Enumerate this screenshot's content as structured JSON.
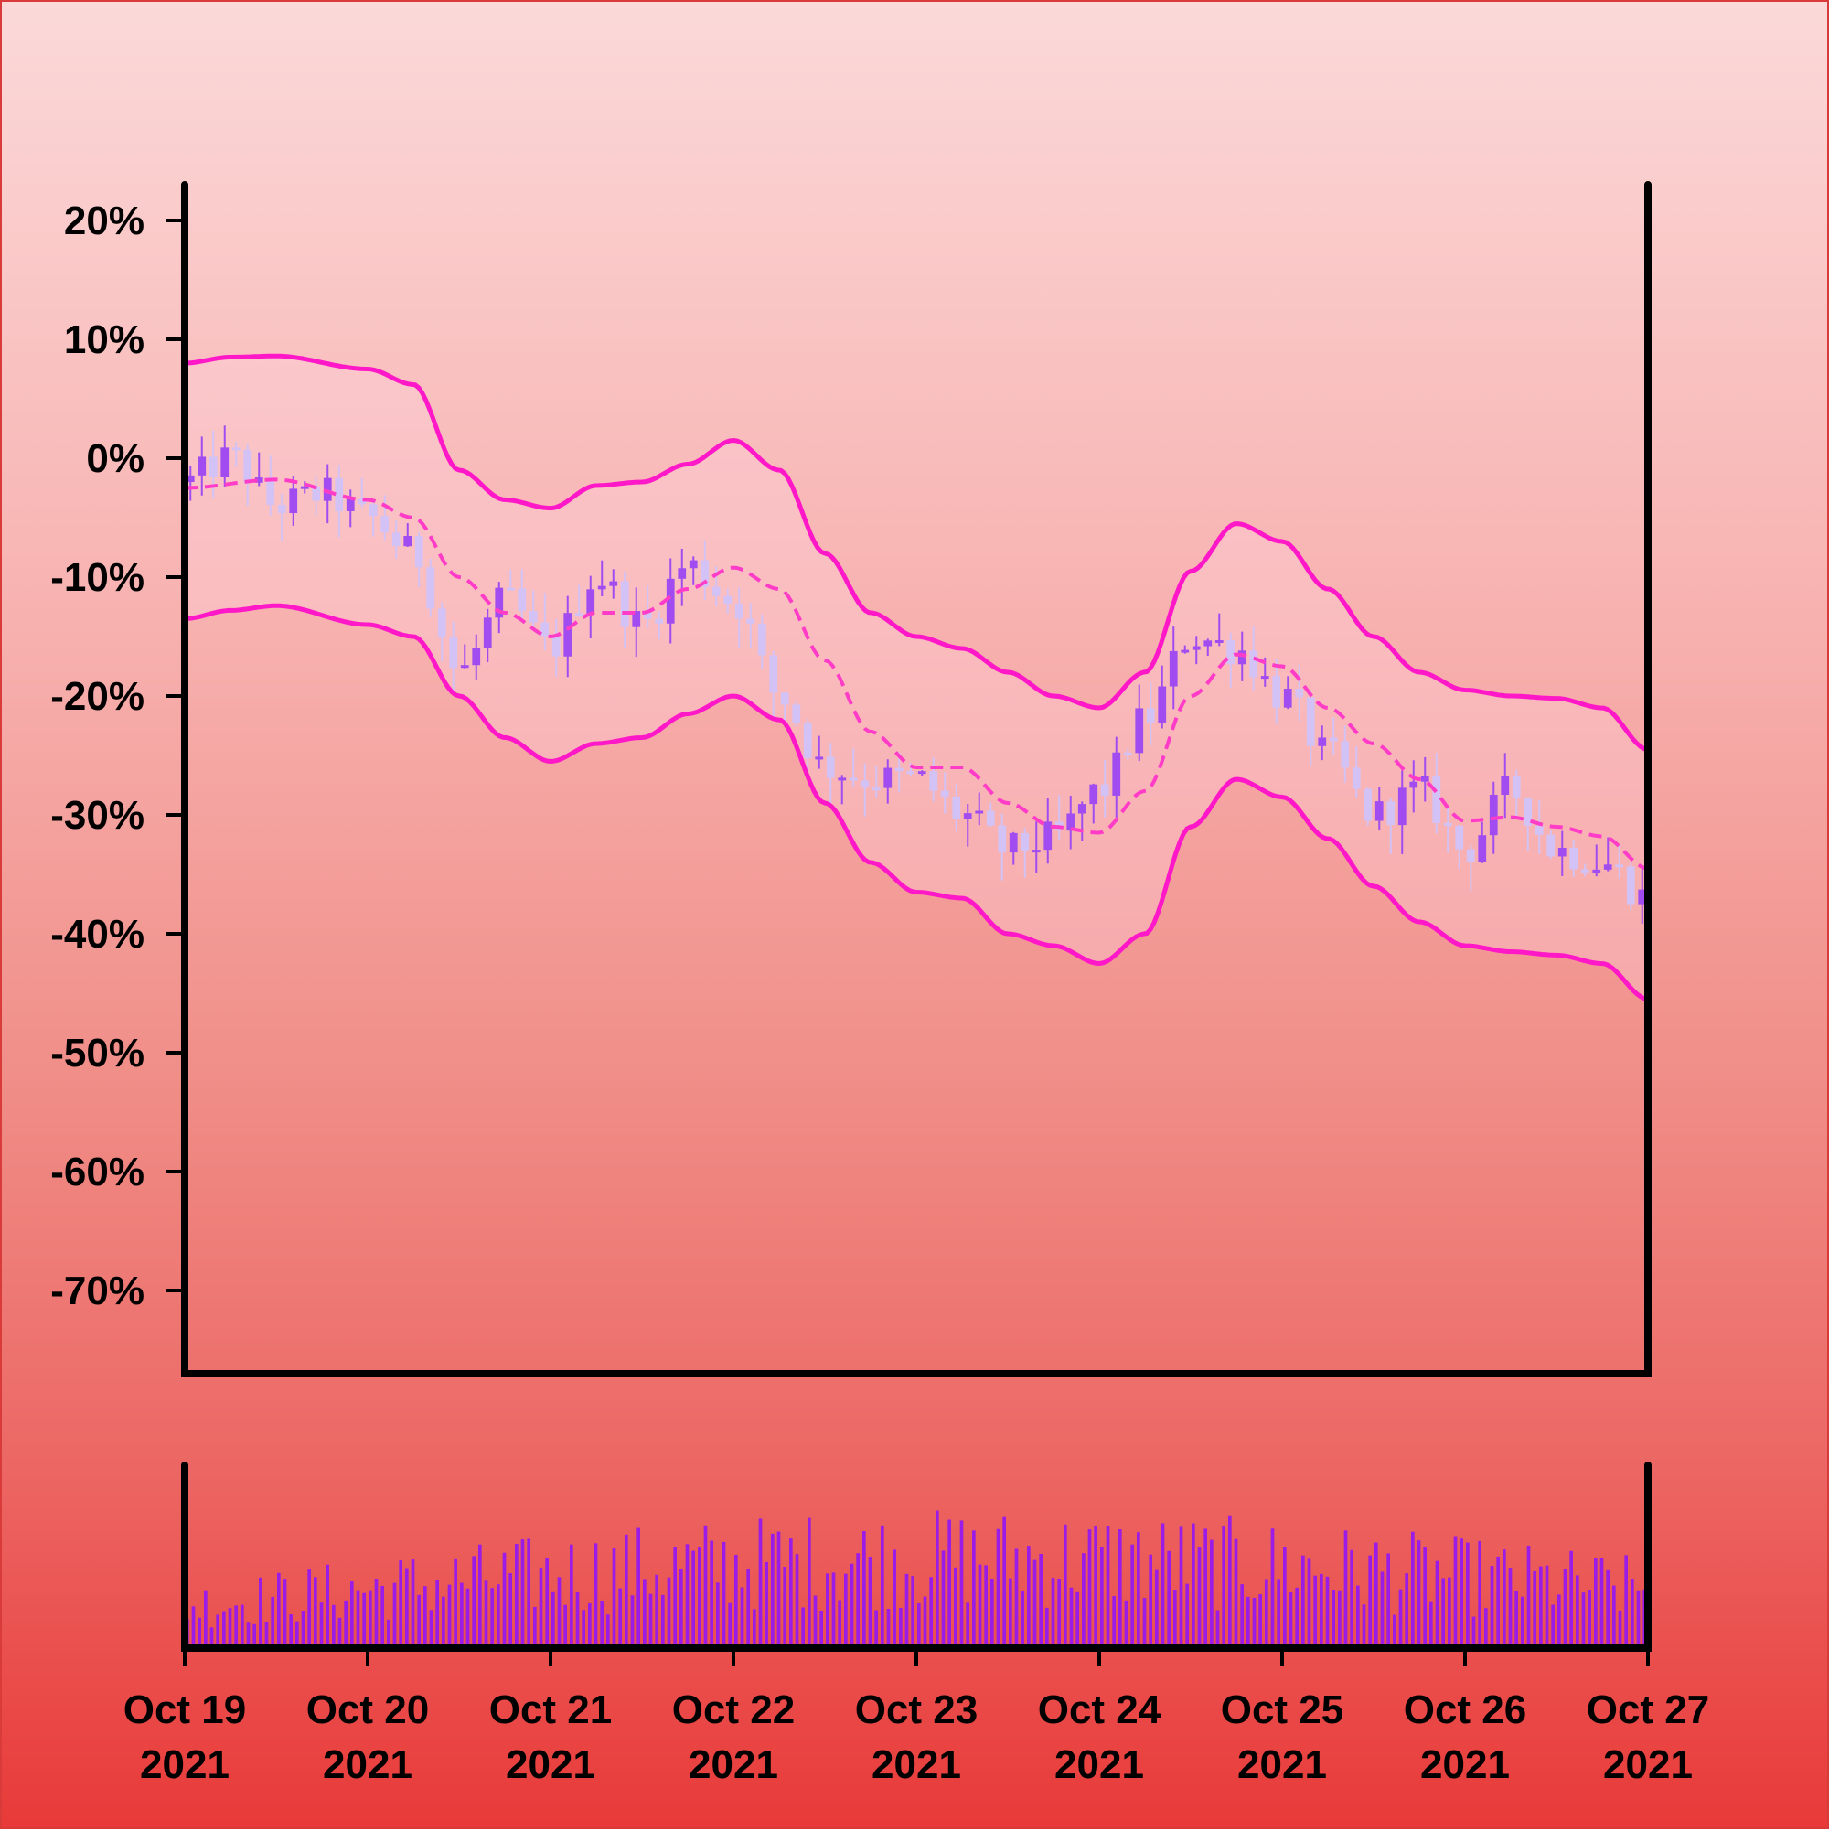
{
  "chart_data": {
    "type": "candlestick",
    "title": "",
    "xlabel": "",
    "ylabel": "",
    "y_unit": "%",
    "ylim": [
      -77,
      23
    ],
    "y_ticks": [
      "20%",
      "10%",
      "0%",
      "-10%",
      "-20%",
      "-30%",
      "-40%",
      "-50%",
      "-60%",
      "-70%"
    ],
    "y_tick_values": [
      20,
      10,
      0,
      -10,
      -20,
      -30,
      -40,
      -50,
      -60,
      -70
    ],
    "x_range": [
      "2021-10-19",
      "2021-10-27"
    ],
    "x_ticks": [
      {
        "date": "2021-10-19",
        "line1": "Oct 19",
        "line2": "2021"
      },
      {
        "date": "2021-10-20",
        "line1": "Oct 20",
        "line2": "2021"
      },
      {
        "date": "2021-10-21",
        "line1": "Oct 21",
        "line2": "2021"
      },
      {
        "date": "2021-10-22",
        "line1": "Oct 22",
        "line2": "2021"
      },
      {
        "date": "2021-10-23",
        "line1": "Oct 23",
        "line2": "2021"
      },
      {
        "date": "2021-10-24",
        "line1": "Oct 24",
        "line2": "2021"
      },
      {
        "date": "2021-10-25",
        "line1": "Oct 25",
        "line2": "2021"
      },
      {
        "date": "2021-10-26",
        "line1": "Oct 26",
        "line2": "2021"
      },
      {
        "date": "2021-10-27",
        "line1": "Oct 27",
        "line2": "2021"
      }
    ],
    "price_path": [
      {
        "t": "2021-10-19 00:00",
        "v": -2
      },
      {
        "t": "2021-10-19 06:00",
        "v": 0
      },
      {
        "t": "2021-10-19 12:00",
        "v": -4
      },
      {
        "t": "2021-10-19 18:00",
        "v": -3
      },
      {
        "t": "2021-10-20 00:00",
        "v": -5
      },
      {
        "t": "2021-10-20 06:00",
        "v": -8
      },
      {
        "t": "2021-10-20 12:00",
        "v": -18
      },
      {
        "t": "2021-10-20 18:00",
        "v": -12
      },
      {
        "t": "2021-10-21 00:00",
        "v": -16
      },
      {
        "t": "2021-10-21 06:00",
        "v": -10
      },
      {
        "t": "2021-10-21 12:00",
        "v": -14
      },
      {
        "t": "2021-10-21 18:00",
        "v": -9
      },
      {
        "t": "2021-10-22 00:00",
        "v": -12
      },
      {
        "t": "2021-10-22 06:00",
        "v": -20
      },
      {
        "t": "2021-10-22 12:00",
        "v": -26
      },
      {
        "t": "2021-10-22 18:00",
        "v": -27
      },
      {
        "t": "2021-10-23 00:00",
        "v": -27
      },
      {
        "t": "2021-10-23 06:00",
        "v": -30
      },
      {
        "t": "2021-10-23 12:00",
        "v": -33
      },
      {
        "t": "2021-10-23 18:00",
        "v": -32
      },
      {
        "t": "2021-10-24 00:00",
        "v": -28
      },
      {
        "t": "2021-10-24 06:00",
        "v": -22
      },
      {
        "t": "2021-10-24 12:00",
        "v": -15
      },
      {
        "t": "2021-10-24 18:00",
        "v": -16
      },
      {
        "t": "2021-10-25 00:00",
        "v": -20
      },
      {
        "t": "2021-10-25 06:00",
        "v": -25
      },
      {
        "t": "2021-10-25 12:00",
        "v": -30
      },
      {
        "t": "2021-10-25 18:00",
        "v": -28
      },
      {
        "t": "2021-10-26 00:00",
        "v": -33
      },
      {
        "t": "2021-10-26 06:00",
        "v": -28
      },
      {
        "t": "2021-10-26 12:00",
        "v": -33
      },
      {
        "t": "2021-10-26 18:00",
        "v": -34
      },
      {
        "t": "2021-10-27 00:00",
        "v": -37
      }
    ],
    "moving_average": [
      {
        "t": "2021-10-19 00:00",
        "v": -2.5
      },
      {
        "t": "2021-10-19 12:00",
        "v": -1.8
      },
      {
        "t": "2021-10-20 00:00",
        "v": -3.5
      },
      {
        "t": "2021-10-20 06:00",
        "v": -5
      },
      {
        "t": "2021-10-20 12:00",
        "v": -10
      },
      {
        "t": "2021-10-20 18:00",
        "v": -13
      },
      {
        "t": "2021-10-21 00:00",
        "v": -15
      },
      {
        "t": "2021-10-21 06:00",
        "v": -13
      },
      {
        "t": "2021-10-21 12:00",
        "v": -13
      },
      {
        "t": "2021-10-21 18:00",
        "v": -11
      },
      {
        "t": "2021-10-22 00:00",
        "v": -9.2
      },
      {
        "t": "2021-10-22 06:00",
        "v": -11
      },
      {
        "t": "2021-10-22 12:00",
        "v": -17
      },
      {
        "t": "2021-10-22 18:00",
        "v": -23
      },
      {
        "t": "2021-10-23 00:00",
        "v": -26
      },
      {
        "t": "2021-10-23 06:00",
        "v": -26
      },
      {
        "t": "2021-10-23 12:00",
        "v": -29
      },
      {
        "t": "2021-10-23 18:00",
        "v": -31
      },
      {
        "t": "2021-10-24 00:00",
        "v": -31.5
      },
      {
        "t": "2021-10-24 06:00",
        "v": -28
      },
      {
        "t": "2021-10-24 12:00",
        "v": -20
      },
      {
        "t": "2021-10-24 18:00",
        "v": -16.5
      },
      {
        "t": "2021-10-25 00:00",
        "v": -17.5
      },
      {
        "t": "2021-10-25 06:00",
        "v": -21
      },
      {
        "t": "2021-10-25 12:00",
        "v": -24
      },
      {
        "t": "2021-10-25 18:00",
        "v": -27
      },
      {
        "t": "2021-10-26 00:00",
        "v": -30.5
      },
      {
        "t": "2021-10-26 06:00",
        "v": -30.2
      },
      {
        "t": "2021-10-26 12:00",
        "v": -31
      },
      {
        "t": "2021-10-26 18:00",
        "v": -31.8
      },
      {
        "t": "2021-10-27 00:00",
        "v": -34.5
      }
    ],
    "upper_band": [
      {
        "t": "2021-10-19 00:00",
        "v": 8
      },
      {
        "t": "2021-10-19 06:00",
        "v": 8.5
      },
      {
        "t": "2021-10-19 12:00",
        "v": 8.6
      },
      {
        "t": "2021-10-20 00:00",
        "v": 7.5
      },
      {
        "t": "2021-10-20 06:00",
        "v": 6.2
      },
      {
        "t": "2021-10-20 12:00",
        "v": -1
      },
      {
        "t": "2021-10-20 18:00",
        "v": -3.5
      },
      {
        "t": "2021-10-21 00:00",
        "v": -4.2
      },
      {
        "t": "2021-10-21 06:00",
        "v": -2.3
      },
      {
        "t": "2021-10-21 12:00",
        "v": -2
      },
      {
        "t": "2021-10-21 18:00",
        "v": -0.5
      },
      {
        "t": "2021-10-22 00:00",
        "v": 1.5
      },
      {
        "t": "2021-10-22 06:00",
        "v": -1
      },
      {
        "t": "2021-10-22 12:00",
        "v": -8
      },
      {
        "t": "2021-10-22 18:00",
        "v": -13
      },
      {
        "t": "2021-10-23 00:00",
        "v": -15
      },
      {
        "t": "2021-10-23 06:00",
        "v": -16
      },
      {
        "t": "2021-10-23 12:00",
        "v": -18
      },
      {
        "t": "2021-10-23 18:00",
        "v": -20
      },
      {
        "t": "2021-10-24 00:00",
        "v": -21
      },
      {
        "t": "2021-10-24 06:00",
        "v": -18
      },
      {
        "t": "2021-10-24 12:00",
        "v": -9.5
      },
      {
        "t": "2021-10-24 18:00",
        "v": -5.5
      },
      {
        "t": "2021-10-25 00:00",
        "v": -7
      },
      {
        "t": "2021-10-25 06:00",
        "v": -11
      },
      {
        "t": "2021-10-25 12:00",
        "v": -15
      },
      {
        "t": "2021-10-25 18:00",
        "v": -18
      },
      {
        "t": "2021-10-26 00:00",
        "v": -19.5
      },
      {
        "t": "2021-10-26 06:00",
        "v": -20
      },
      {
        "t": "2021-10-26 12:00",
        "v": -20.2
      },
      {
        "t": "2021-10-26 18:00",
        "v": -21
      },
      {
        "t": "2021-10-27 00:00",
        "v": -24.5
      }
    ],
    "lower_band": [
      {
        "t": "2021-10-19 00:00",
        "v": -13.5
      },
      {
        "t": "2021-10-19 06:00",
        "v": -12.8
      },
      {
        "t": "2021-10-19 12:00",
        "v": -12.4
      },
      {
        "t": "2021-10-20 00:00",
        "v": -14
      },
      {
        "t": "2021-10-20 06:00",
        "v": -15
      },
      {
        "t": "2021-10-20 12:00",
        "v": -20
      },
      {
        "t": "2021-10-20 18:00",
        "v": -23.5
      },
      {
        "t": "2021-10-21 00:00",
        "v": -25.5
      },
      {
        "t": "2021-10-21 06:00",
        "v": -24
      },
      {
        "t": "2021-10-21 12:00",
        "v": -23.5
      },
      {
        "t": "2021-10-21 18:00",
        "v": -21.5
      },
      {
        "t": "2021-10-22 00:00",
        "v": -20
      },
      {
        "t": "2021-10-22 06:00",
        "v": -22
      },
      {
        "t": "2021-10-22 12:00",
        "v": -29
      },
      {
        "t": "2021-10-22 18:00",
        "v": -34
      },
      {
        "t": "2021-10-23 00:00",
        "v": -36.5
      },
      {
        "t": "2021-10-23 06:00",
        "v": -37
      },
      {
        "t": "2021-10-23 12:00",
        "v": -40
      },
      {
        "t": "2021-10-23 18:00",
        "v": -41
      },
      {
        "t": "2021-10-24 00:00",
        "v": -42.5
      },
      {
        "t": "2021-10-24 06:00",
        "v": -40
      },
      {
        "t": "2021-10-24 12:00",
        "v": -31
      },
      {
        "t": "2021-10-24 18:00",
        "v": -27
      },
      {
        "t": "2021-10-25 00:00",
        "v": -28.5
      },
      {
        "t": "2021-10-25 06:00",
        "v": -32
      },
      {
        "t": "2021-10-25 12:00",
        "v": -36
      },
      {
        "t": "2021-10-25 18:00",
        "v": -39
      },
      {
        "t": "2021-10-26 00:00",
        "v": -41
      },
      {
        "t": "2021-10-26 06:00",
        "v": -41.5
      },
      {
        "t": "2021-10-26 12:00",
        "v": -41.8
      },
      {
        "t": "2021-10-26 18:00",
        "v": -42.5
      },
      {
        "t": "2021-10-27 00:00",
        "v": -45.5
      }
    ],
    "grid": false,
    "legend": "none",
    "colors": {
      "candle_up": "#a04cf0",
      "candle_down": "#d3c2f5",
      "band": "#ff18c8",
      "moving_average": "#ff3cc8",
      "volume": "#9a1ce6",
      "axis": "#000000"
    }
  }
}
